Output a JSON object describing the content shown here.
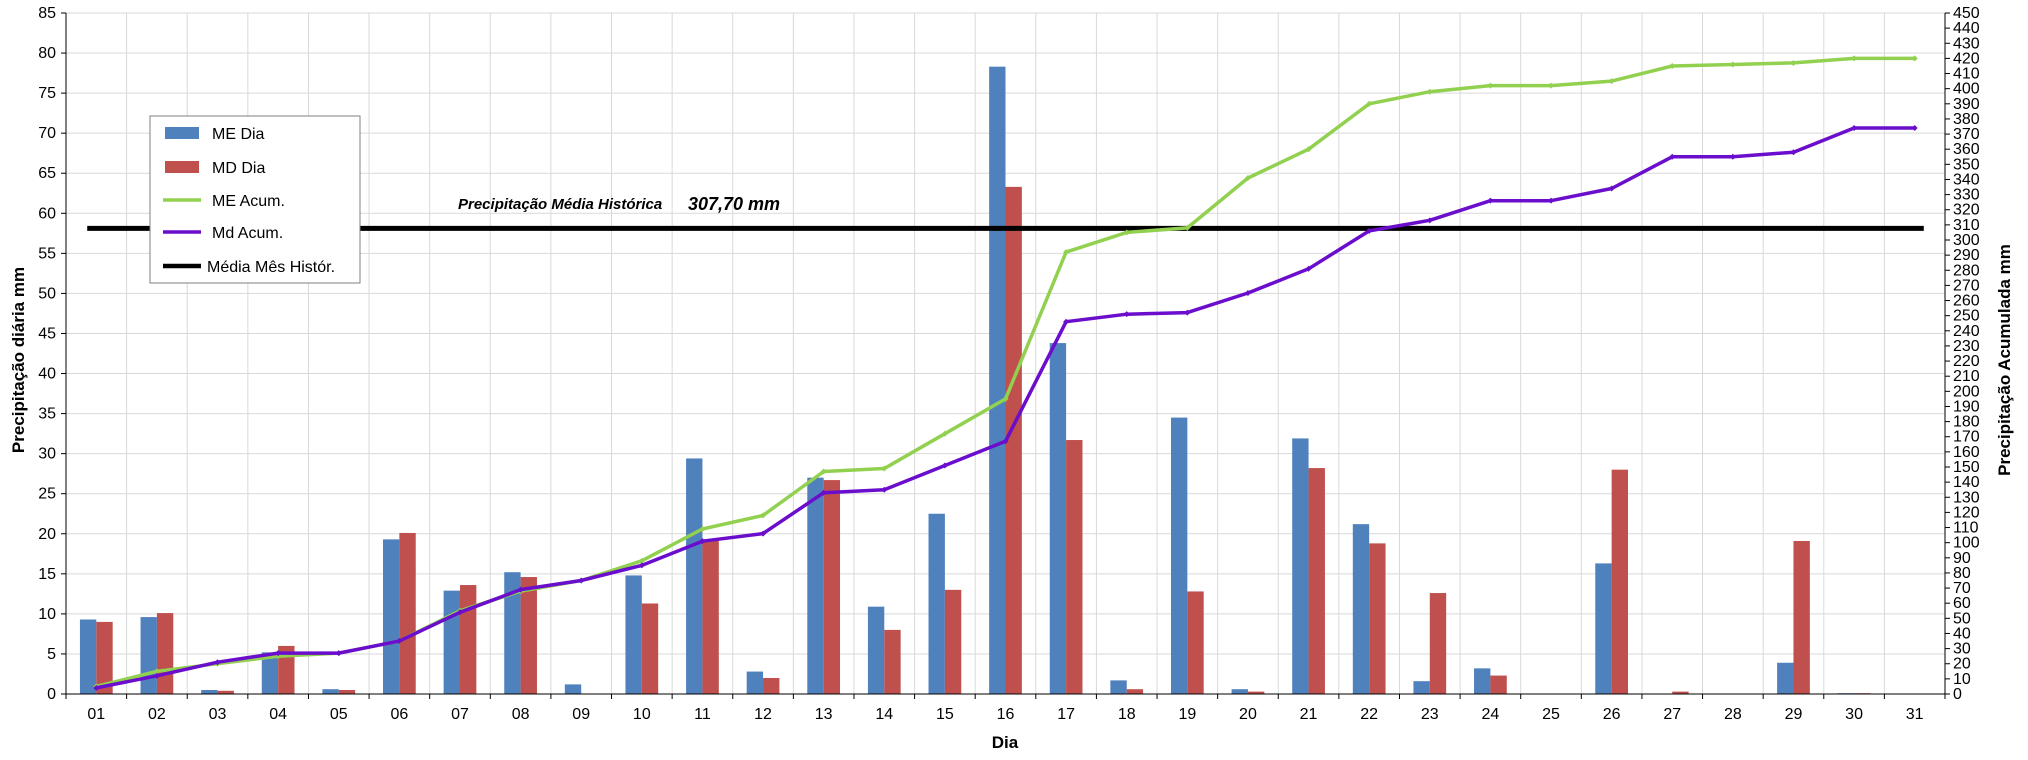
{
  "chart_data": {
    "type": "bar",
    "categories": [
      "01",
      "02",
      "03",
      "04",
      "05",
      "06",
      "07",
      "08",
      "09",
      "10",
      "11",
      "12",
      "13",
      "14",
      "15",
      "16",
      "17",
      "18",
      "19",
      "20",
      "21",
      "22",
      "23",
      "24",
      "25",
      "26",
      "27",
      "28",
      "29",
      "30",
      "31"
    ],
    "series": [
      {
        "name": "ME Dia",
        "type": "bar",
        "axis": "left",
        "color": "#4F81BD",
        "values": [
          9.3,
          9.6,
          0.5,
          5.2,
          0.6,
          19.3,
          12.9,
          15.2,
          1.2,
          14.8,
          29.4,
          2.8,
          27.0,
          10.9,
          22.5,
          78.3,
          43.8,
          1.7,
          34.5,
          0.6,
          31.9,
          21.2,
          1.6,
          3.2,
          0,
          16.3,
          0,
          0,
          3.9,
          0.1,
          0
        ]
      },
      {
        "name": "MD Dia",
        "type": "bar",
        "axis": "left",
        "color": "#C0504D",
        "values": [
          9.0,
          10.1,
          0.4,
          6.0,
          0.5,
          20.1,
          13.6,
          14.6,
          0,
          11.3,
          19.3,
          2.0,
          26.7,
          8.0,
          13.0,
          63.3,
          31.7,
          0.6,
          12.8,
          0.3,
          28.2,
          18.8,
          12.6,
          2.3,
          0,
          28.0,
          0.3,
          0,
          19.1,
          0.1,
          0
        ]
      },
      {
        "name": "ME Acum.",
        "type": "line",
        "axis": "right",
        "color": "#92D050",
        "values": [
          5,
          15,
          20,
          25,
          27,
          35,
          55,
          68,
          75,
          88,
          109,
          118,
          147,
          149,
          172,
          195,
          292,
          305,
          308,
          341,
          360,
          390,
          398,
          402,
          402,
          405,
          415,
          416,
          417,
          420,
          420
        ]
      },
      {
        "name": "Md Acum.",
        "type": "line",
        "axis": "right",
        "color": "#6A0DCC",
        "values": [
          4,
          12,
          21,
          27,
          27,
          35,
          54,
          69,
          75,
          85,
          101,
          106,
          133,
          135,
          151,
          167,
          246,
          251,
          252,
          265,
          281,
          306,
          313,
          326,
          326,
          334,
          355,
          355,
          358,
          374,
          374
        ]
      }
    ],
    "reference_line": {
      "name": "Média Mês Histór.",
      "value": 307.7,
      "axis": "right",
      "color": "#000000"
    },
    "annotation": {
      "label": "Precipitação Média Histórica",
      "value_text": "307,70 mm"
    },
    "xlabel": "Dia",
    "ylabel": "Precipitação diária mm",
    "ylabel_right": "Precipitação Acumulada mm",
    "ylim": [
      0,
      85
    ],
    "ylim_right": [
      0,
      450
    ],
    "yticks": [
      0,
      5,
      10,
      15,
      20,
      25,
      30,
      35,
      40,
      45,
      50,
      55,
      60,
      65,
      70,
      75,
      80,
      85
    ],
    "yticks_right": [
      0,
      10,
      20,
      30,
      40,
      50,
      60,
      70,
      80,
      90,
      100,
      110,
      120,
      130,
      140,
      150,
      160,
      170,
      180,
      190,
      200,
      210,
      220,
      230,
      240,
      250,
      260,
      270,
      280,
      290,
      300,
      310,
      320,
      330,
      340,
      350,
      360,
      370,
      380,
      390,
      400,
      410,
      420,
      430,
      440,
      450
    ],
    "grid": true,
    "legend_placement": "upper-left"
  }
}
